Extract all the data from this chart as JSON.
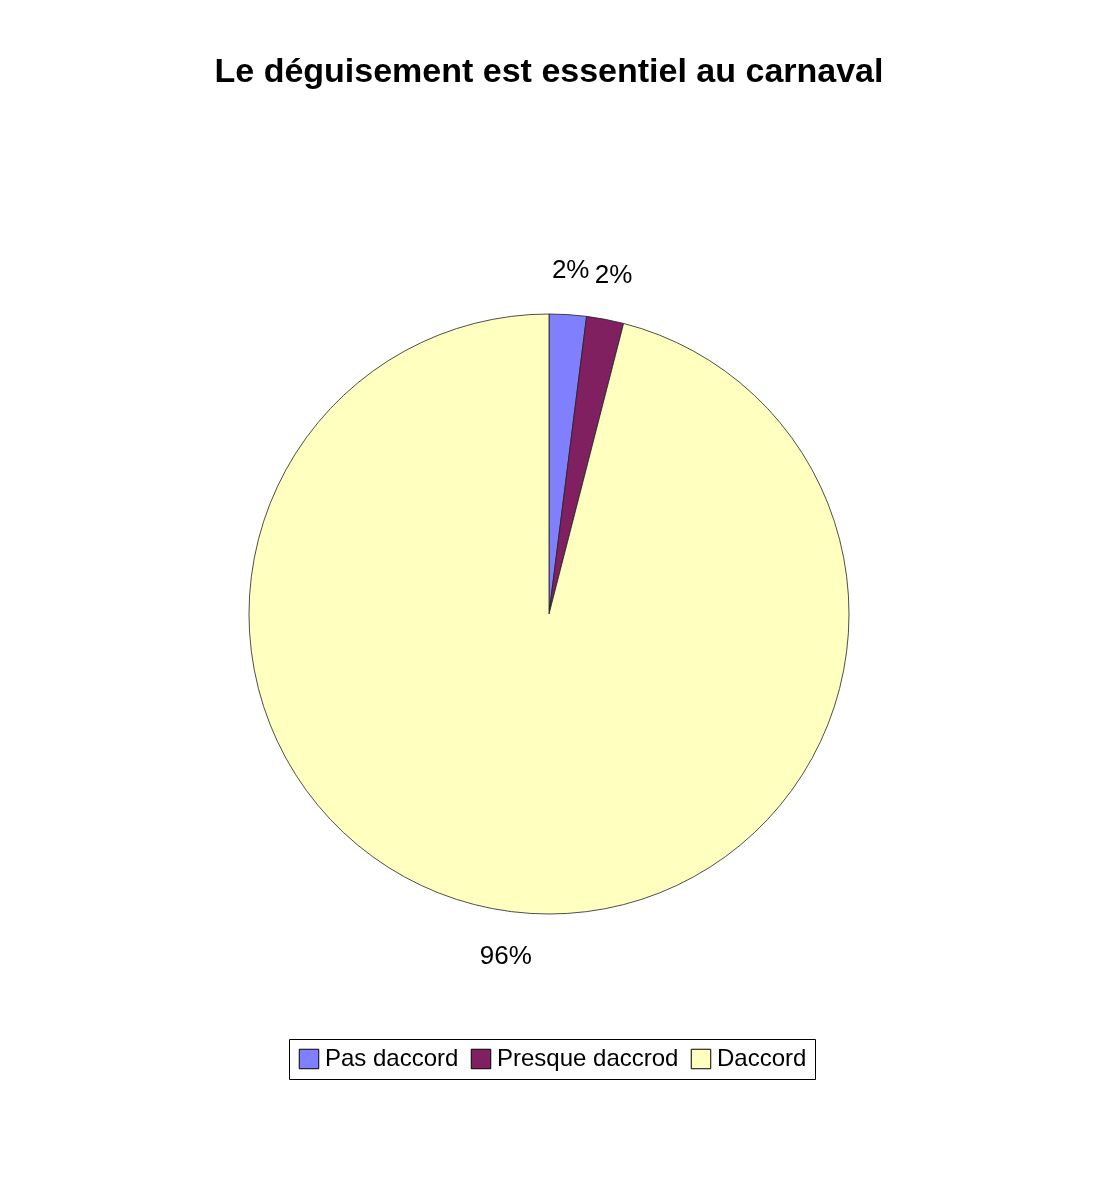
{
  "chart_data": {
    "type": "pie",
    "title": "Le déguisement est essentiel au carnaval",
    "categories": [
      "Pas daccord",
      "Presque daccrod",
      "Daccord"
    ],
    "values": [
      2,
      2,
      96
    ],
    "colors": [
      "#8080ff",
      "#802060",
      "#ffffc0"
    ],
    "value_labels": [
      "2%",
      "2%",
      "96%"
    ],
    "legend": "bottom"
  }
}
